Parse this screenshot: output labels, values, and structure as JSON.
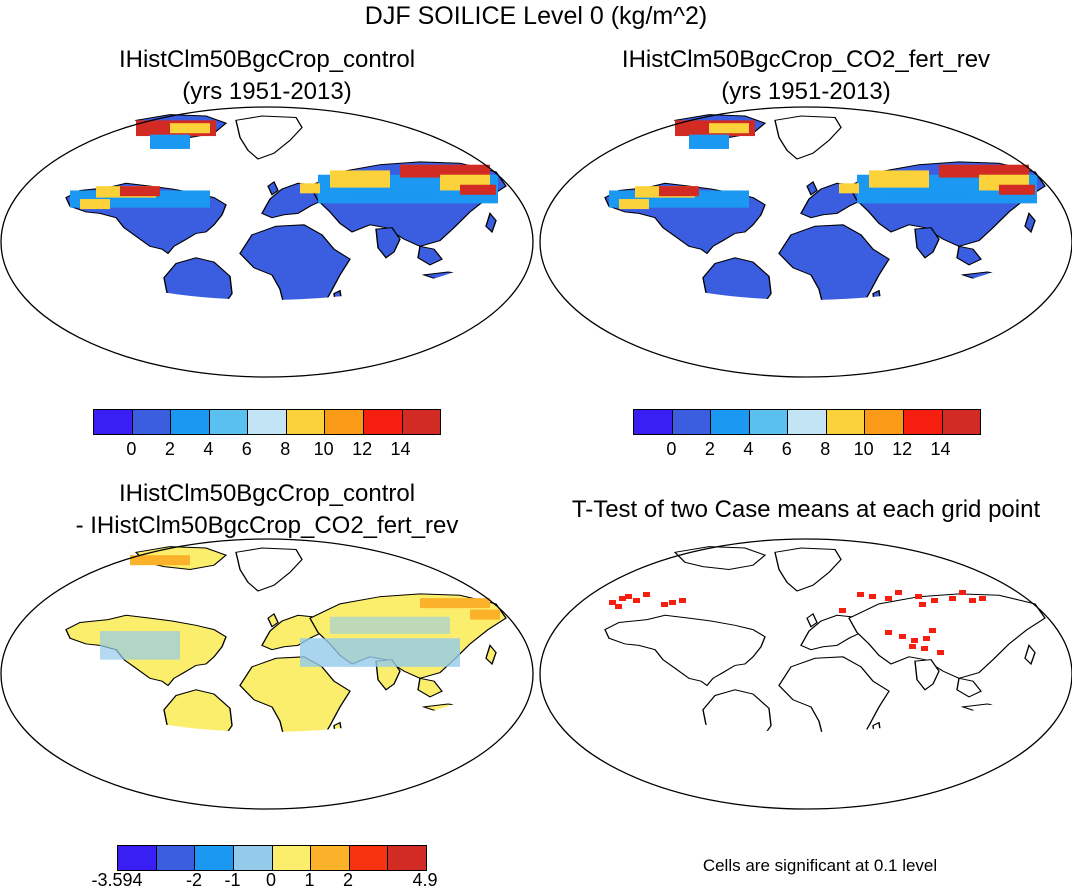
{
  "title": "DJF SOILICE Level 0 (kg/m^2)",
  "panels": [
    {
      "title_line1": "IHistClm50BgcCrop_control",
      "title_line2": "(yrs 1951-2013)"
    },
    {
      "title_line1": "IHistClm50BgcCrop_CO2_fert_rev",
      "title_line2": "(yrs 1951-2013)"
    },
    {
      "title_line1": "IHistClm50BgcCrop_control",
      "title_line2": "- IHistClm50BgcCrop_CO2_fert_rev"
    },
    {
      "title_line1": "T-Test of two Case means at each grid point",
      "title_line2": ""
    }
  ],
  "colorbar_abs": {
    "colors": [
      "#3a1ff5",
      "#3b5ee0",
      "#1a98f2",
      "#5ac0f0",
      "#c3e4f5",
      "#fcd23a",
      "#fb9a16",
      "#f51e0f",
      "#d12b24"
    ],
    "labels": [
      "0",
      "2",
      "4",
      "6",
      "8",
      "10",
      "12",
      "14"
    ]
  },
  "colorbar_diff": {
    "colors": [
      "#3a1ff5",
      "#3b5ee0",
      "#1a98f2",
      "#94cbeb",
      "#fbee6c",
      "#fbb12a",
      "#f5330f",
      "#d12b24"
    ],
    "labels": [
      "-3.594",
      "-2",
      "-1",
      "0",
      "1",
      "2",
      "4.9"
    ]
  },
  "significance_note": "Cells are significant at 0.1 level",
  "map_colors": {
    "land_low": "#3b5ee0",
    "land_mid": "#1a98f2",
    "land_high": "#fcd23a",
    "land_peak": "#d12b24",
    "diff_land": "#fbee6c",
    "diff_cool": "#94cbeb",
    "diff_warm": "#fbb12a",
    "sig": "#f51e0f"
  }
}
